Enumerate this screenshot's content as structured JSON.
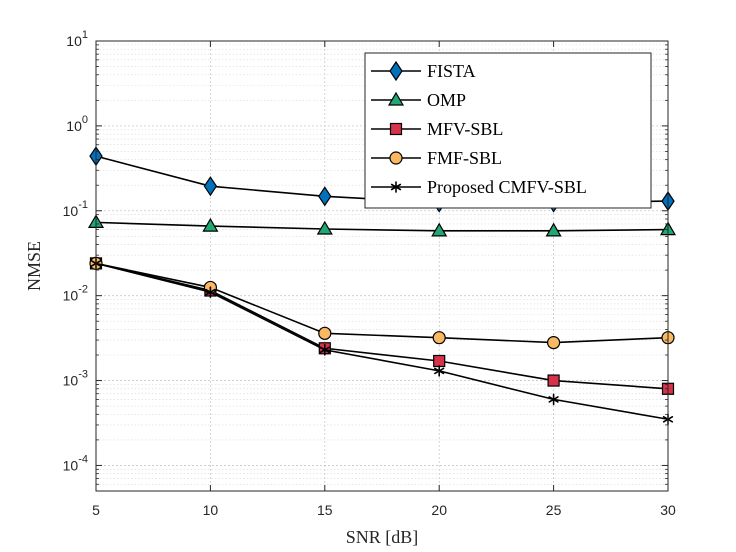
{
  "chart_data": {
    "type": "line",
    "xlabel": "SNR [dB]",
    "ylabel": "NMSE",
    "x": [
      5,
      10,
      15,
      20,
      25,
      30
    ],
    "xlim": [
      5,
      30
    ],
    "ylim": [
      5e-05,
      10
    ],
    "yscale": "log",
    "xticks": [
      "5",
      "10",
      "15",
      "20",
      "25",
      "30"
    ],
    "yticks": [
      {
        "value": 0.0001,
        "base": "10",
        "exp": "-4"
      },
      {
        "value": 0.001,
        "base": "10",
        "exp": "-3"
      },
      {
        "value": 0.01,
        "base": "10",
        "exp": "-2"
      },
      {
        "value": 0.1,
        "base": "10",
        "exp": "-1"
      },
      {
        "value": 1,
        "base": "10",
        "exp": "0"
      },
      {
        "value": 10,
        "base": "10",
        "exp": "1"
      }
    ],
    "grid": true,
    "legend_position": "top-right",
    "series": [
      {
        "name": "FISTA",
        "marker": "diamond",
        "color": "#0072BD",
        "values": [
          0.44,
          0.195,
          0.148,
          0.125,
          0.125,
          0.13
        ]
      },
      {
        "name": "OMP",
        "marker": "triangle",
        "color": "#21A674",
        "values": [
          0.073,
          0.066,
          0.061,
          0.058,
          0.058,
          0.06
        ]
      },
      {
        "name": "MFV-SBL",
        "marker": "square",
        "color": "#D6324A",
        "values": [
          0.024,
          0.0115,
          0.0024,
          0.0017,
          0.001,
          0.0008
        ]
      },
      {
        "name": "FMF-SBL",
        "marker": "circle",
        "color": "#FBB863",
        "values": [
          0.024,
          0.0125,
          0.0036,
          0.0032,
          0.0028,
          0.0032
        ]
      },
      {
        "name": "Proposed CMFV-SBL",
        "marker": "asterisk",
        "color": "#000000",
        "values": [
          0.024,
          0.011,
          0.0023,
          0.0013,
          0.0006,
          0.00035
        ]
      }
    ]
  }
}
